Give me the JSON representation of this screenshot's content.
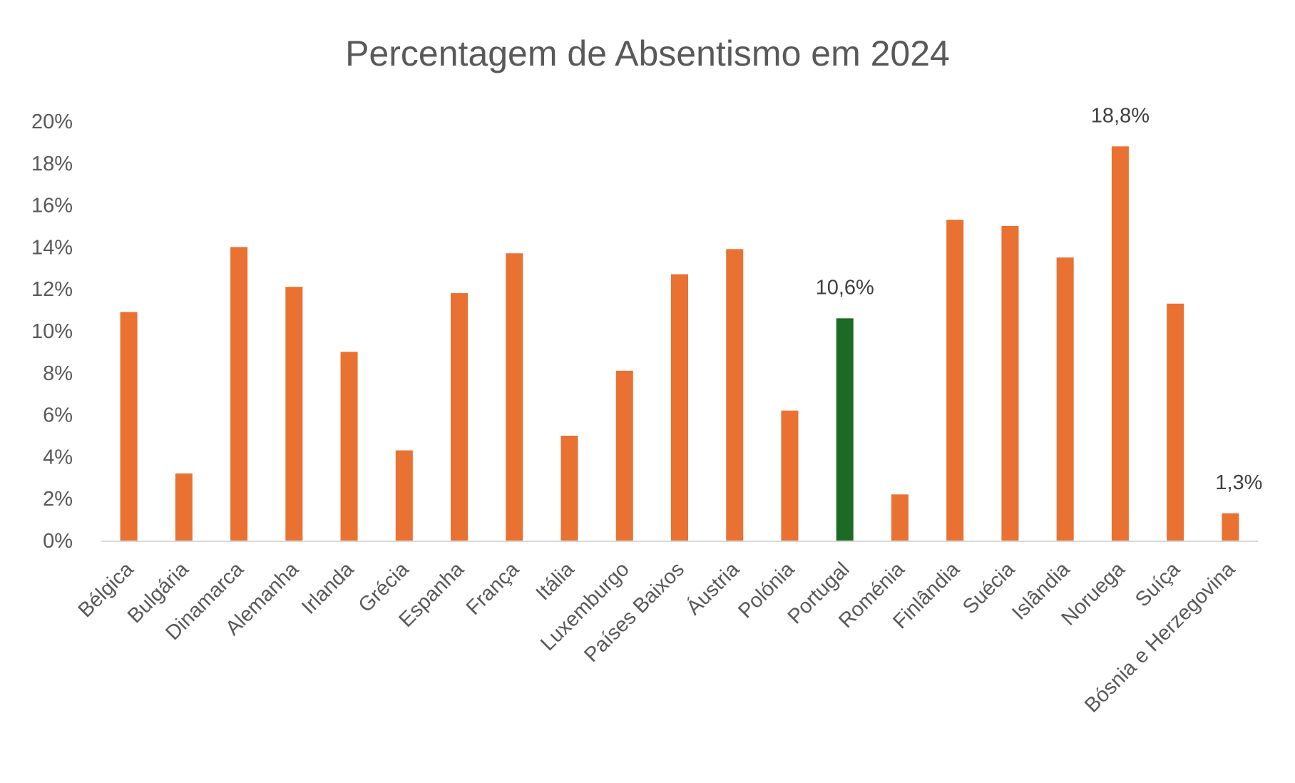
{
  "chart_data": {
    "type": "bar",
    "title": "Percentagem de Absentismo em 2024",
    "xlabel": "",
    "ylabel": "",
    "ylim": [
      0,
      20
    ],
    "yticks": [
      0,
      2,
      4,
      6,
      8,
      10,
      12,
      14,
      16,
      18,
      20
    ],
    "ytick_labels": [
      "0%",
      "2%",
      "4%",
      "6%",
      "8%",
      "10%",
      "12%",
      "14%",
      "16%",
      "18%",
      "20%"
    ],
    "grid": false,
    "legend": "none",
    "categories": [
      "Bélgica",
      "Bulgária",
      "Dinamarca",
      "Alemanha",
      "Irlanda",
      "Grécia",
      "Espanha",
      "França",
      "Itália",
      "Luxemburgo",
      "Países Baixos",
      "Áustria",
      "Polónia",
      "Portugal",
      "Roménia",
      "Finlândia",
      "Suécia",
      "Islândia",
      "Noruega",
      "Suíça",
      "Bósnia e Herzegovina"
    ],
    "values": [
      10.9,
      3.2,
      14.0,
      12.1,
      9.0,
      4.3,
      11.8,
      13.7,
      5.0,
      8.1,
      12.7,
      13.9,
      6.2,
      10.6,
      2.2,
      15.3,
      15.0,
      13.5,
      18.8,
      11.3,
      1.3
    ],
    "data_labels": {
      "Portugal": "10,6%",
      "Noruega": "18,8%",
      "Bósnia e Herzegovina": "1,3%"
    },
    "colors": {
      "default": "#E97132",
      "highlight": "#1B6B25",
      "highlight_category": "Portugal",
      "axis": "#D9D9D9"
    }
  }
}
